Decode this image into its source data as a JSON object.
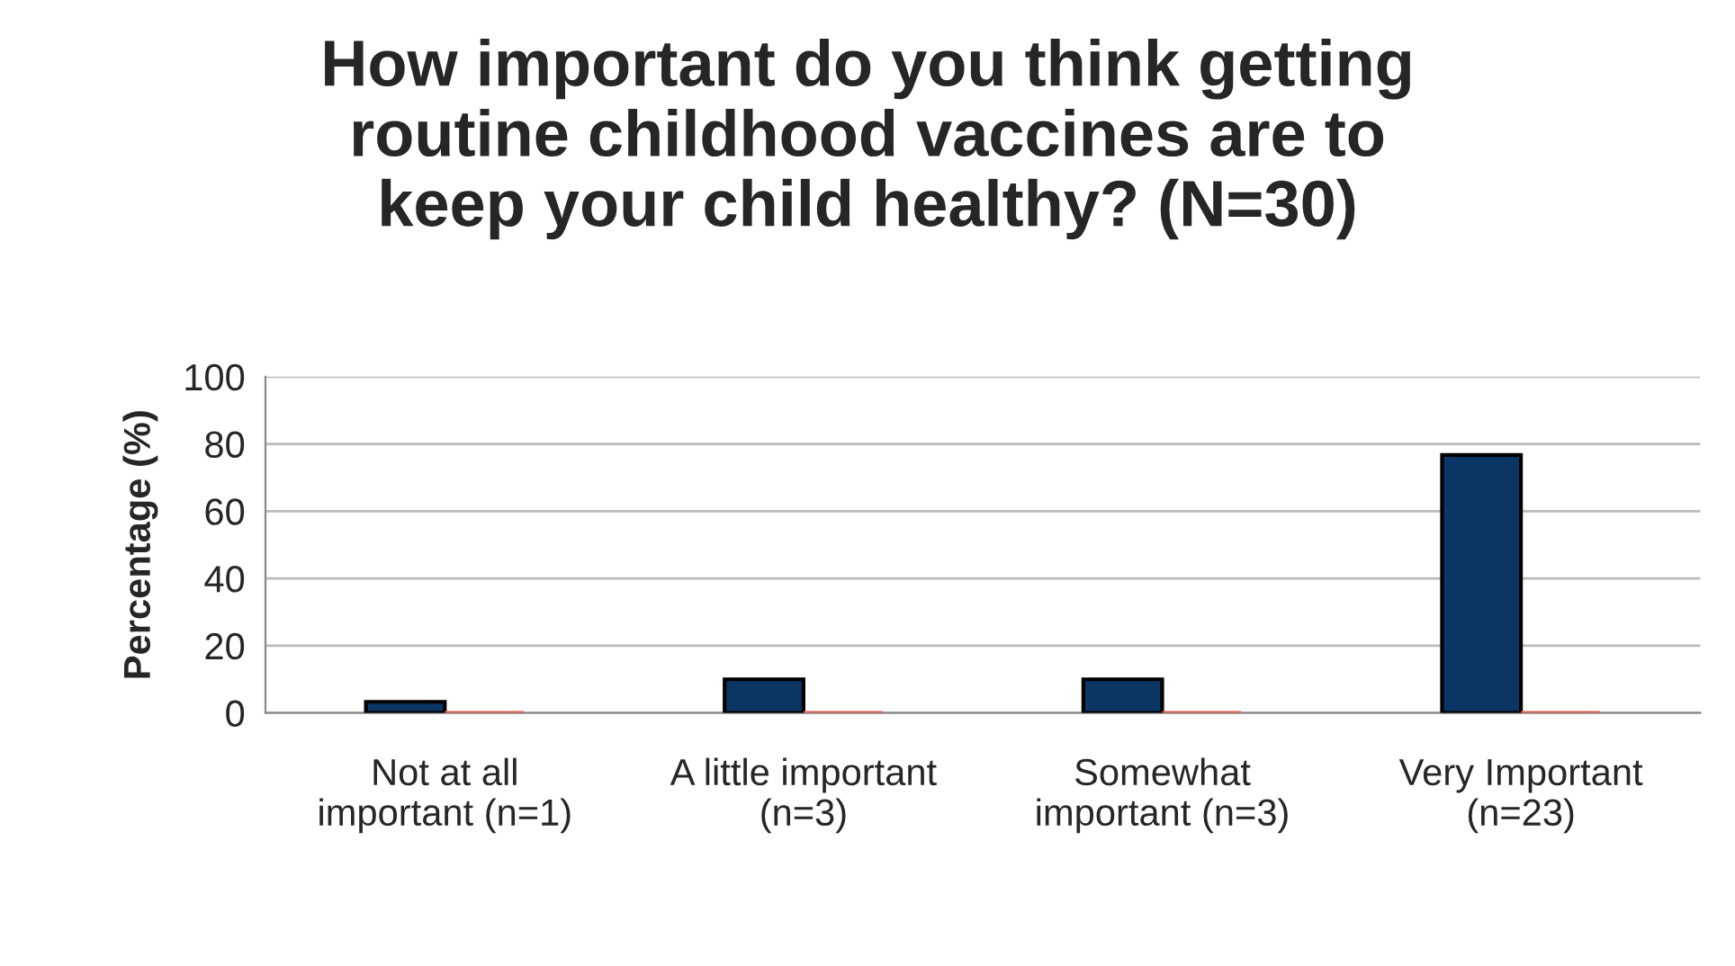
{
  "chart_data": {
    "type": "bar",
    "title": "How important do you think getting\nroutine childhood vaccines are to\nkeep your child healthy? (N=30)",
    "ylabel": "Percentage (%)",
    "categories": [
      "Not at all\nimportant (n=1)",
      "A little important\n(n=3)",
      "Somewhat\nimportant (n=3)",
      "Very Important\n(n=23)"
    ],
    "series": [
      {
        "color": "#0b3563",
        "values": [
          3.3,
          10,
          10,
          76.7
        ]
      },
      {
        "color": "#e0614f",
        "values": [
          0,
          0,
          0,
          0
        ]
      }
    ],
    "ylim": [
      0,
      100
    ],
    "yticks": [
      0,
      20,
      40,
      60,
      80,
      100
    ],
    "grid": "y"
  }
}
